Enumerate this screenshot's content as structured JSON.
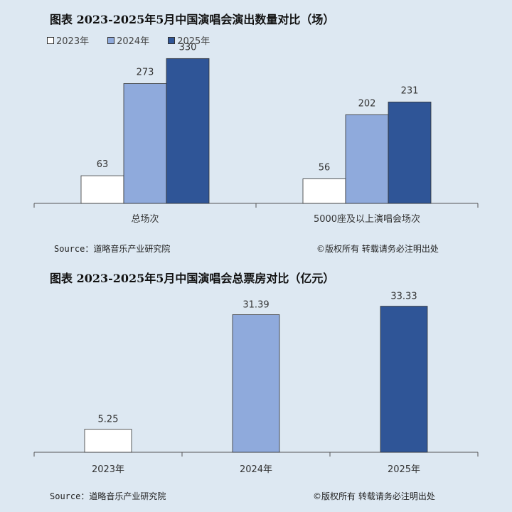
{
  "colors": {
    "y2023": "#ffffff",
    "y2024": "#8faadc",
    "y2025": "#2f5597",
    "axis": "#555555"
  },
  "chart_data": [
    {
      "type": "bar",
      "title": "图表  2023-2025年5月中国演唱会演出数量对比（场）",
      "legend": [
        "2023年",
        "2024年",
        "2025年"
      ],
      "legend_position": "top-left",
      "categories": [
        "总场次",
        "5000座及以上演唱会场次"
      ],
      "series": [
        {
          "name": "2023年",
          "values": [
            63,
            56
          ],
          "labels": [
            "63",
            "56"
          ]
        },
        {
          "name": "2024年",
          "values": [
            273,
            202
          ],
          "labels": [
            "273",
            "202"
          ]
        },
        {
          "name": "2025年",
          "values": [
            330,
            231
          ],
          "labels": [
            "330",
            "231"
          ]
        }
      ],
      "ylim": [
        0,
        350
      ],
      "grid": false
    },
    {
      "type": "bar",
      "title": "图表  2023-2025年5月中国演唱会总票房对比（亿元）",
      "categories": [
        "2023年",
        "2024年",
        "2025年"
      ],
      "values": [
        5.25,
        31.39,
        33.33
      ],
      "labels": [
        "5.25",
        "31.39",
        "33.33"
      ],
      "ylim": [
        0,
        37
      ],
      "grid": false
    }
  ],
  "footer": {
    "source": "Source：道略音乐产业研究院",
    "copyright": "©版权所有    转载请务必注明出处"
  }
}
